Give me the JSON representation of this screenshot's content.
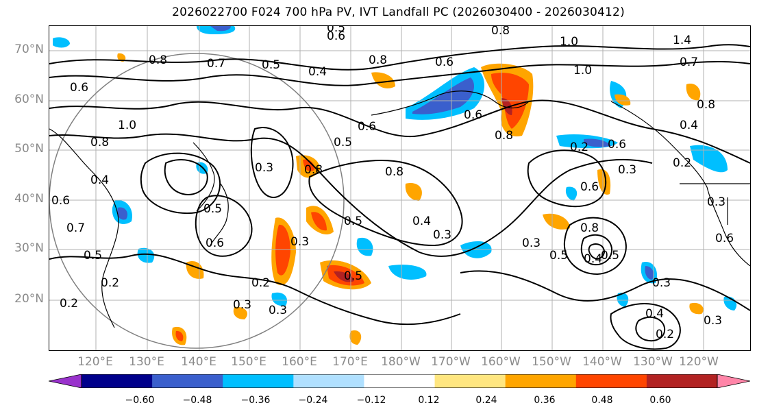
{
  "title": "2026022700 F024 700 hPa PV, IVT Landfall PC (2026030400 - 2026030412)",
  "lat_labels": [
    "70°N",
    "60°N",
    "50°N",
    "40°N",
    "30°N",
    "20°N"
  ],
  "lon_labels": [
    "120°E",
    "130°E",
    "140°E",
    "150°E",
    "160°E",
    "170°E",
    "180°W",
    "170°W",
    "160°W",
    "150°W",
    "140°W",
    "130°W",
    "120°W"
  ],
  "colorbar": {
    "ticks": [
      "−0.60",
      "−0.48",
      "−0.36",
      "−0.24",
      "−0.12",
      "0.12",
      "0.24",
      "0.36",
      "0.48",
      "0.60"
    ],
    "colors": [
      "#9932cc",
      "#00008b",
      "#3a5fcd",
      "#00bfff",
      "#b0e0ff",
      "#ffffff",
      "#ffe680",
      "#ffa500",
      "#ff4500",
      "#b22222",
      "#ff85a8"
    ]
  },
  "contour_labels": [
    "0.5",
    "0.6",
    "0.8",
    "1.4",
    "1.0",
    "0.7",
    "0.8",
    "0.7",
    "0.5",
    "0.4",
    "0.8",
    "0.6",
    "1.0",
    "0.6",
    "0.8",
    "0.6",
    "0.8",
    "0.4",
    "0.6",
    "0.8",
    "1.0",
    "0.5",
    "0.6",
    "0.2",
    "0.8",
    "0.3",
    "0.8",
    "0.5",
    "0.3",
    "0.4",
    "0.5",
    "0.6",
    "0.6",
    "0.3",
    "0.4",
    "0.3",
    "0.5",
    "0.8",
    "0.3",
    "0.5",
    "0.4",
    "0.5",
    "0.2",
    "0.3",
    "0.3",
    "0.2",
    "0.3",
    "0.4",
    "0.2",
    "0.3",
    "0.2",
    "0.3",
    "0.6",
    "0.7",
    "0.5",
    "0.2",
    "0.6"
  ]
}
